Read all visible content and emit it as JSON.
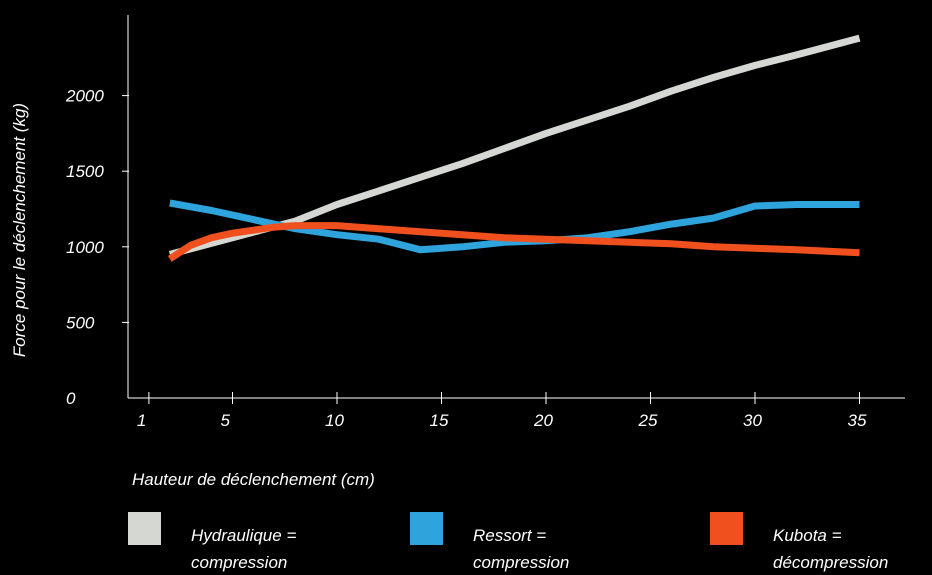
{
  "chart_data": {
    "type": "line",
    "title": "",
    "xlabel": "Hauteur de déclenchement  (cm)",
    "ylabel": "Force pour le déclenchement (kg)",
    "xlim": [
      0,
      38
    ],
    "ylim": [
      0,
      2500
    ],
    "x_ticks": [
      "1",
      "5",
      "10",
      "15",
      "20",
      "25",
      "30",
      "35"
    ],
    "y_ticks": [
      "0",
      "500",
      "1000",
      "1500",
      "2000"
    ],
    "grid": false,
    "legend_position": "bottom",
    "series": [
      {
        "name_lines": [
          "Hydraulique =",
          "compression"
        ],
        "color": "#d5d8d2",
        "x": [
          2,
          5,
          8,
          10,
          12,
          14,
          16,
          18,
          20,
          22,
          24,
          26,
          28,
          30,
          32,
          35
        ],
        "y": [
          950,
          1060,
          1170,
          1280,
          1370,
          1460,
          1550,
          1650,
          1750,
          1840,
          1930,
          2030,
          2120,
          2200,
          2270,
          2380
        ]
      },
      {
        "name_lines": [
          "Ressort =",
          "compression"
        ],
        "color": "#2ea3dc",
        "x": [
          2,
          4,
          6,
          8,
          10,
          12,
          14,
          16,
          18,
          20,
          22,
          24,
          26,
          28,
          30,
          32,
          35
        ],
        "y": [
          1290,
          1240,
          1180,
          1120,
          1080,
          1050,
          980,
          1000,
          1030,
          1040,
          1060,
          1100,
          1150,
          1190,
          1270,
          1280,
          1280
        ]
      },
      {
        "name_lines": [
          "Kubota =",
          "décompression"
        ],
        "color": "#f0501e",
        "x": [
          2,
          3,
          4,
          5,
          6,
          7,
          8,
          10,
          12,
          14,
          16,
          18,
          20,
          22,
          24,
          26,
          28,
          30,
          32,
          35
        ],
        "y": [
          920,
          1010,
          1060,
          1090,
          1110,
          1130,
          1140,
          1140,
          1120,
          1100,
          1080,
          1060,
          1050,
          1040,
          1030,
          1020,
          1000,
          990,
          980,
          960
        ]
      }
    ]
  }
}
